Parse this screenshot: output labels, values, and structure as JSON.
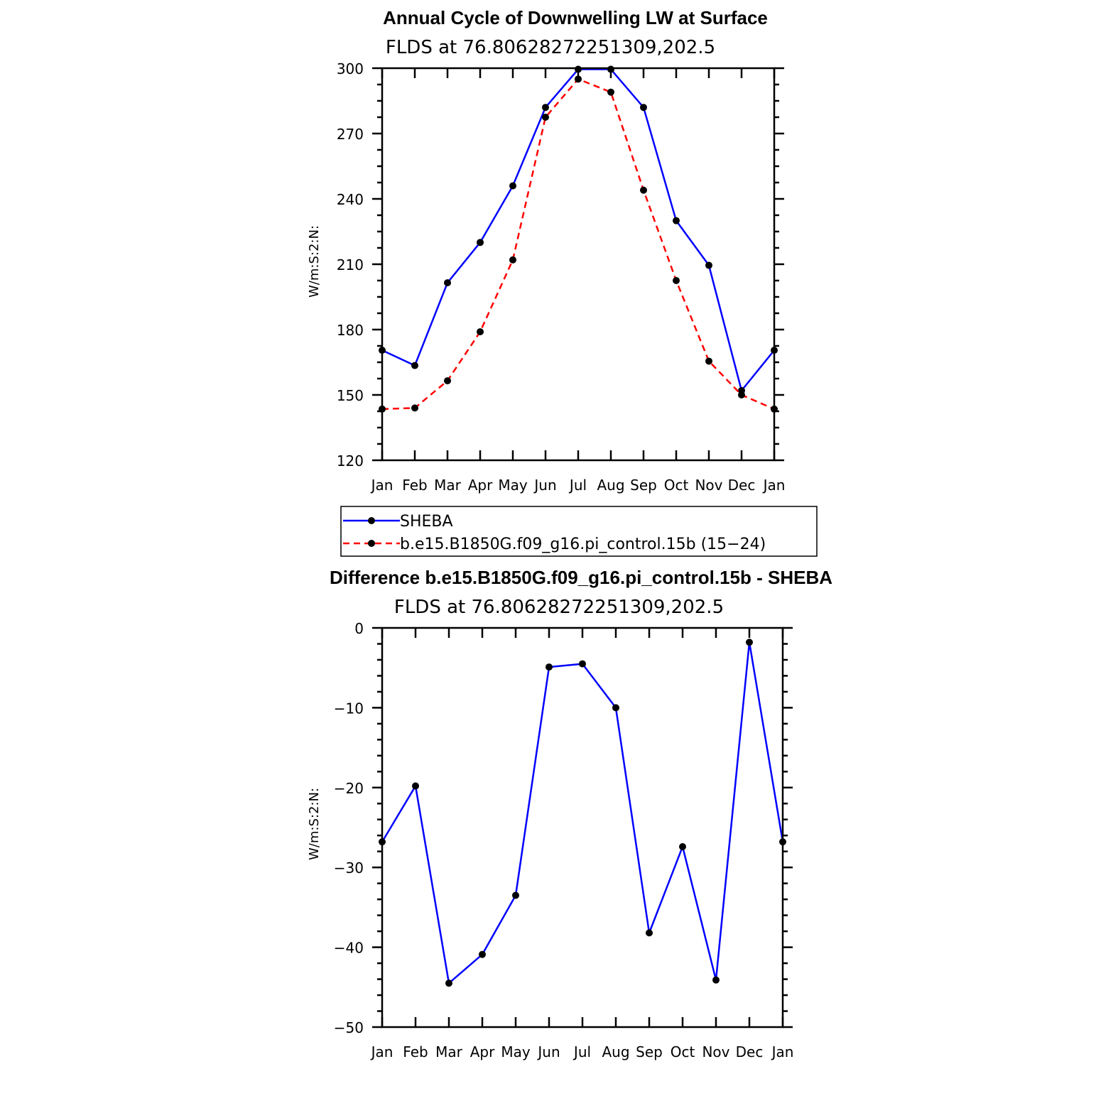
{
  "chart_data": [
    {
      "type": "line",
      "title": "Annual Cycle of Downwelling LW at Surface",
      "subtitle": "FLDS at 76.80628272251309,202.5",
      "ylabel": "W/m:S:2:N:",
      "xlabel": "",
      "categories": [
        "Jan",
        "Feb",
        "Mar",
        "Apr",
        "May",
        "Jun",
        "Jul",
        "Aug",
        "Sep",
        "Oct",
        "Nov",
        "Dec",
        "Jan"
      ],
      "ylim": [
        120,
        300
      ],
      "yticks": [
        120,
        150,
        180,
        210,
        240,
        270,
        300
      ],
      "ytick_labels": [
        "120",
        "150",
        "180",
        "210",
        "240",
        "270",
        "300"
      ],
      "series": [
        {
          "name": "SHEBA",
          "color": "#0000ff",
          "style": "solid",
          "values": [
            170.5,
            163.5,
            201.5,
            220,
            246,
            282,
            299.5,
            299.5,
            282,
            230,
            209.5,
            152,
            170.5
          ]
        },
        {
          "name": "b.e15.B1850G.f09_g16.pi_control.15b (15−24)",
          "color": "#ff0000",
          "style": "dashed",
          "values": [
            143.5,
            144,
            156.5,
            179,
            212,
            277.5,
            295,
            289,
            244,
            202.5,
            165.5,
            150,
            143.5
          ]
        }
      ],
      "legend": "below"
    },
    {
      "type": "line",
      "title": "Difference b.e15.B1850G.f09_g16.pi_control.15b - SHEBA",
      "subtitle": "FLDS at 76.80628272251309,202.5",
      "ylabel": "W/m:S:2:N:",
      "xlabel": "",
      "categories": [
        "Jan",
        "Feb",
        "Mar",
        "Apr",
        "May",
        "Jun",
        "Jul",
        "Aug",
        "Sep",
        "Oct",
        "Nov",
        "Dec",
        "Jan"
      ],
      "ylim": [
        -50,
        0
      ],
      "yticks": [
        -50,
        -40,
        -30,
        -20,
        -10,
        0
      ],
      "ytick_labels": [
        "−50",
        "−40",
        "−30",
        "−20",
        "−10",
        "0"
      ],
      "series": [
        {
          "color": "#0000ff",
          "style": "solid",
          "values": [
            -26.8,
            -19.8,
            -44.5,
            -40.9,
            -33.5,
            -4.9,
            -4.5,
            -10,
            -38.2,
            -27.4,
            -44.1,
            -1.8,
            -26.8
          ]
        }
      ]
    }
  ]
}
